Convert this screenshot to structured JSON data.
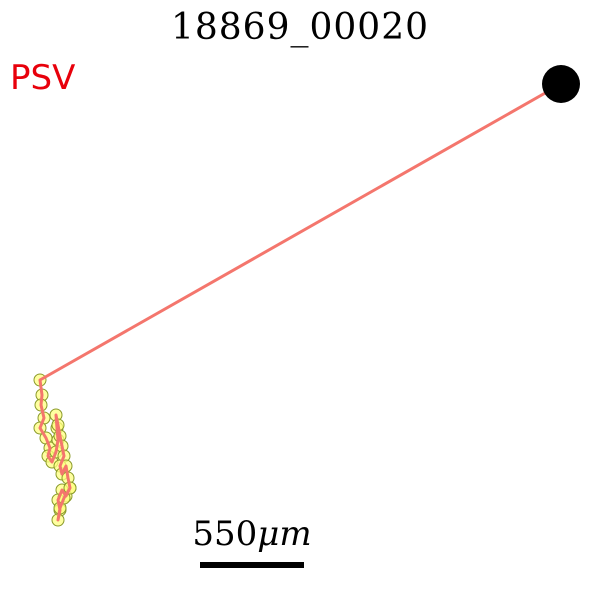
{
  "title": "18869_00020",
  "label": {
    "text": "PSV",
    "color": "#e8000b"
  },
  "scale": {
    "value": "550",
    "unit": "μm"
  },
  "colors": {
    "track_line": "#f4766d",
    "marker_fill": "#ffff80",
    "marker_stroke": "#8a9a2a",
    "endpoint": "#000000"
  }
}
